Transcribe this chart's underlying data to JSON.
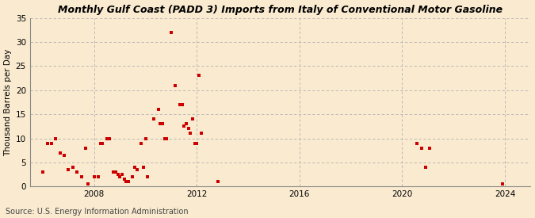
{
  "title": "Monthly Gulf Coast (PADD 3) Imports from Italy of Conventional Motor Gasoline",
  "ylabel": "Thousand Barrels per Day",
  "source": "Source: U.S. Energy Information Administration",
  "background_color": "#faebd0",
  "marker_color": "#cc0000",
  "ylim": [
    0,
    35
  ],
  "yticks": [
    0,
    5,
    10,
    15,
    20,
    25,
    30,
    35
  ],
  "xlim": [
    2005.5,
    2025.0
  ],
  "xticks": [
    2008,
    2012,
    2016,
    2020,
    2024
  ],
  "data_points": [
    [
      2006.0,
      3.0
    ],
    [
      2006.17,
      9.0
    ],
    [
      2006.33,
      9.0
    ],
    [
      2006.5,
      10.0
    ],
    [
      2006.67,
      7.0
    ],
    [
      2006.83,
      6.5
    ],
    [
      2007.0,
      3.5
    ],
    [
      2007.17,
      4.0
    ],
    [
      2007.33,
      3.0
    ],
    [
      2007.5,
      2.0
    ],
    [
      2007.67,
      8.0
    ],
    [
      2007.75,
      0.5
    ],
    [
      2008.0,
      2.0
    ],
    [
      2008.17,
      2.0
    ],
    [
      2008.25,
      9.0
    ],
    [
      2008.33,
      9.0
    ],
    [
      2008.5,
      10.0
    ],
    [
      2008.58,
      10.0
    ],
    [
      2008.75,
      3.0
    ],
    [
      2008.83,
      3.0
    ],
    [
      2008.92,
      2.5
    ],
    [
      2009.0,
      2.0
    ],
    [
      2009.08,
      2.5
    ],
    [
      2009.17,
      1.5
    ],
    [
      2009.25,
      1.0
    ],
    [
      2009.33,
      1.0
    ],
    [
      2009.5,
      2.0
    ],
    [
      2009.58,
      4.0
    ],
    [
      2009.67,
      3.5
    ],
    [
      2009.83,
      9.0
    ],
    [
      2009.92,
      4.0
    ],
    [
      2010.0,
      10.0
    ],
    [
      2010.08,
      2.0
    ],
    [
      2010.33,
      14.0
    ],
    [
      2010.5,
      16.0
    ],
    [
      2010.58,
      13.0
    ],
    [
      2010.67,
      13.0
    ],
    [
      2010.75,
      10.0
    ],
    [
      2010.83,
      10.0
    ],
    [
      2011.0,
      32.0
    ],
    [
      2011.17,
      21.0
    ],
    [
      2011.33,
      17.0
    ],
    [
      2011.42,
      17.0
    ],
    [
      2011.5,
      12.5
    ],
    [
      2011.58,
      13.0
    ],
    [
      2011.67,
      12.0
    ],
    [
      2011.75,
      11.0
    ],
    [
      2011.83,
      14.0
    ],
    [
      2011.92,
      9.0
    ],
    [
      2012.0,
      9.0
    ],
    [
      2012.08,
      23.0
    ],
    [
      2012.17,
      11.0
    ],
    [
      2012.83,
      1.0
    ],
    [
      2020.58,
      9.0
    ],
    [
      2020.75,
      8.0
    ],
    [
      2020.92,
      4.0
    ],
    [
      2021.08,
      8.0
    ],
    [
      2023.92,
      0.5
    ]
  ]
}
